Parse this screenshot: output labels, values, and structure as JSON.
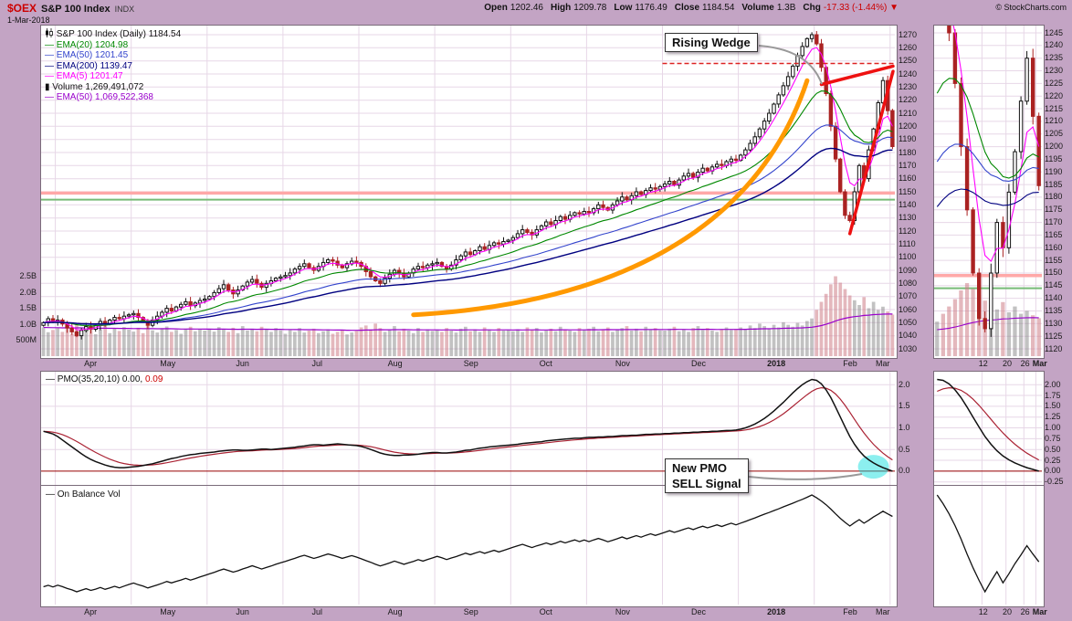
{
  "header": {
    "symbol": "$OEX",
    "name": "S&P 100 Index",
    "exchange": "INDX",
    "date": "1-Mar-2018",
    "watermark": "© StockCharts.com",
    "quote_items": [
      {
        "label": "Open",
        "value": "1202.46"
      },
      {
        "label": "High",
        "value": "1209.78"
      },
      {
        "label": "Low",
        "value": "1176.49"
      },
      {
        "label": "Close",
        "value": "1184.54"
      },
      {
        "label": "Volume",
        "value": "1.3B"
      },
      {
        "label": "Chg",
        "value": "-17.33 (-1.44%)",
        "color": "#cc0000",
        "icon": "▼"
      }
    ]
  },
  "legend": {
    "title": "S&P 100 Index (Daily) 1184.54",
    "items": [
      {
        "glyph": "—",
        "color": "#008800",
        "label": "EMA(20) 1204.98"
      },
      {
        "glyph": "—",
        "color": "#3344cc",
        "label": "EMA(50) 1201.45"
      },
      {
        "glyph": "—",
        "color": "#000080",
        "label": "EMA(200) 1139.47"
      },
      {
        "glyph": "—",
        "color": "#ff00ff",
        "label": "EMA(5) 1201.47"
      },
      {
        "glyph": "▮",
        "color": "#111111",
        "label": "Volume 1,269,491,072"
      },
      {
        "glyph": "—",
        "color": "#9900cc",
        "label": "EMA(50) 1,069,522,368"
      }
    ]
  },
  "pmo": {
    "legend": "PMO(35,20,10) 0.00,",
    "legend_value": "0.09"
  },
  "obv": {
    "legend": "— On Balance Vol"
  },
  "annotations": {
    "rising_wedge": "Rising Wedge",
    "pmo_sell_line1": "New PMO",
    "pmo_sell_line2": "SELL Signal"
  },
  "axes": {
    "volume_ticks": [
      {
        "label": "2.5B",
        "v": 2500
      },
      {
        "label": "2.0B",
        "v": 2000
      },
      {
        "label": "1.5B",
        "v": 1500
      },
      {
        "label": "1.0B",
        "v": 1000
      },
      {
        "label": "500M",
        "v": 500
      }
    ],
    "pmo_ticks": [
      {
        "label": "2.0",
        "v": 2.0
      },
      {
        "label": "1.5",
        "v": 1.5
      },
      {
        "label": "1.0",
        "v": 1.0
      },
      {
        "label": "0.5",
        "v": 0.5
      },
      {
        "label": "0.0",
        "v": 0.0
      }
    ],
    "mini_pmo_ticks": [
      {
        "label": "2.00",
        "v": 2.0
      },
      {
        "label": "1.75",
        "v": 1.75
      },
      {
        "label": "1.50",
        "v": 1.5
      },
      {
        "label": "1.25",
        "v": 1.25
      },
      {
        "label": "1.00",
        "v": 1.0
      },
      {
        "label": "0.75",
        "v": 0.75
      },
      {
        "label": "0.50",
        "v": 0.5
      },
      {
        "label": "0.25",
        "v": 0.25
      },
      {
        "label": "0.00",
        "v": 0.0
      },
      {
        "label": "-0.25",
        "v": -0.25
      }
    ]
  },
  "chart_data": {
    "type": "candlestick",
    "title": "S&P 100 Index (Daily)",
    "x_months": [
      "Apr",
      "May",
      "Jun",
      "Jul",
      "Aug",
      "Sep",
      "Oct",
      "Nov",
      "Dec",
      "2018",
      "Feb",
      "Mar"
    ],
    "month_start_indices": [
      3,
      19,
      35,
      51,
      67,
      83,
      99,
      115,
      131,
      147,
      163,
      179
    ],
    "price_axis": {
      "min": 1030,
      "max": 1270,
      "step": 10
    },
    "mini_axis": {
      "min": 1120,
      "max": 1245,
      "step": 5
    },
    "mini_window_start": 162,
    "mini_gridlines": [
      {
        "i": 170,
        "label": "12"
      },
      {
        "i": 174,
        "label": "20"
      },
      {
        "i": 177,
        "label": "26"
      },
      {
        "i": 179,
        "label": "Mar"
      }
    ],
    "price": {
      "last_close": 1184.54,
      "closes": [
        1050,
        1053,
        1051,
        1052,
        1049,
        1046,
        1043,
        1040,
        1044,
        1047,
        1045,
        1048,
        1051,
        1049,
        1052,
        1054,
        1053,
        1055,
        1056,
        1057,
        1054,
        1051,
        1048,
        1052,
        1055,
        1058,
        1061,
        1059,
        1062,
        1064,
        1066,
        1063,
        1065,
        1067,
        1068,
        1070,
        1073,
        1076,
        1079,
        1075,
        1072,
        1075,
        1078,
        1081,
        1083,
        1080,
        1077,
        1080,
        1082,
        1084,
        1085,
        1086,
        1088,
        1091,
        1093,
        1095,
        1092,
        1090,
        1093,
        1096,
        1098,
        1097,
        1094,
        1092,
        1095,
        1097,
        1096,
        1093,
        1089,
        1085,
        1082,
        1080,
        1084,
        1087,
        1090,
        1088,
        1085,
        1088,
        1091,
        1093,
        1092,
        1094,
        1095,
        1096,
        1093,
        1091,
        1094,
        1098,
        1101,
        1104,
        1102,
        1105,
        1108,
        1106,
        1109,
        1111,
        1110,
        1112,
        1113,
        1115,
        1118,
        1121,
        1119,
        1117,
        1121,
        1124,
        1127,
        1125,
        1128,
        1131,
        1129,
        1132,
        1134,
        1133,
        1135,
        1134,
        1137,
        1140,
        1138,
        1136,
        1140,
        1143,
        1146,
        1144,
        1147,
        1150,
        1148,
        1151,
        1153,
        1152,
        1154,
        1156,
        1158,
        1155,
        1159,
        1162,
        1164,
        1161,
        1165,
        1168,
        1166,
        1169,
        1171,
        1170,
        1173,
        1175,
        1174,
        1178,
        1182,
        1187,
        1192,
        1198,
        1204,
        1210,
        1217,
        1224,
        1231,
        1238,
        1246,
        1254,
        1261,
        1267,
        1270,
        1263,
        1245,
        1225,
        1200,
        1175,
        1150,
        1132,
        1128,
        1150,
        1170,
        1160,
        1182,
        1198,
        1218,
        1235,
        1212,
        1184.54
      ],
      "volumes_millions": [
        900,
        750,
        820,
        880,
        760,
        940,
        700,
        1020,
        850,
        780,
        920,
        690,
        840,
        980,
        720,
        860,
        790,
        910,
        830,
        770,
        890,
        720,
        950,
        810,
        740,
        880,
        930,
        760,
        820,
        700,
        860,
        920,
        780,
        840,
        800,
        850,
        770,
        910,
        830,
        760,
        890,
        720,
        940,
        800,
        860,
        780,
        920,
        840,
        760,
        880,
        810,
        700,
        820,
        760,
        880,
        740,
        800,
        860,
        720,
        780,
        840,
        700,
        760,
        820,
        680,
        740,
        790,
        900,
        960,
        840,
        1020,
        880,
        760,
        820,
        940,
        780,
        860,
        800,
        720,
        880,
        760,
        840,
        790,
        820,
        760,
        880,
        800,
        740,
        860,
        920,
        780,
        840,
        760,
        900,
        820,
        760,
        880,
        800,
        830,
        780,
        840,
        760,
        900,
        820,
        880,
        740,
        800,
        860,
        780,
        920,
        840,
        800,
        760,
        880,
        820,
        860,
        920,
        780,
        840,
        900,
        760,
        820,
        880,
        940,
        800,
        860,
        780,
        920,
        840,
        880,
        810,
        800,
        860,
        920,
        780,
        840,
        760,
        880,
        940,
        820,
        880,
        800,
        760,
        840,
        900,
        820,
        850,
        900,
        840,
        960,
        880,
        1020,
        940,
        860,
        980,
        900,
        1060,
        980,
        920,
        1040,
        960,
        1100,
        1180,
        1450,
        1700,
        1950,
        2250,
        2500,
        2300,
        2100,
        1900,
        1750,
        1600,
        1850,
        1500,
        1700,
        1450,
        1550,
        1400,
        1300
      ]
    },
    "overlays": {
      "emas": [
        {
          "period": 5,
          "display_span": 5,
          "color": "#ff00ff"
        },
        {
          "period": 20,
          "display_span": 20,
          "color": "#008800"
        },
        {
          "period": 50,
          "display_span": 40,
          "color": "#3344cc"
        },
        {
          "period": 200,
          "display_span": 60,
          "color": "#000080"
        }
      ],
      "volume_ema_period": 50,
      "volume_ema_color": "#9900cc",
      "orange_curve": {
        "color": "#ff9900",
        "points": [
          [
            78,
            1056
          ],
          [
            118,
            1064
          ],
          [
            150,
            1115
          ],
          [
            161,
            1235
          ]
        ]
      },
      "wedge_lines": [
        {
          "from_i": 164,
          "from_p": 1232,
          "to_i": 179.8,
          "to_p": 1246
        },
        {
          "from_i": 170,
          "from_p": 1118,
          "to_i": 179.8,
          "to_p": 1242
        }
      ],
      "dashed_resistance": {
        "price": 1248,
        "from_i": 131,
        "color": "#dd2222"
      },
      "hlines": [
        {
          "price": 1149,
          "color": "#ffa8a8",
          "width": 3.5
        },
        {
          "price": 1144,
          "color": "#77bb77",
          "width": 2
        }
      ]
    },
    "pmo": {
      "range": {
        "min": -0.32,
        "max": 2.3
      },
      "signal_span": 8,
      "line_color": "#111111",
      "signal_color": "#aa2233",
      "zero_line_color": "#990000",
      "values": [
        0.92,
        0.89,
        0.86,
        0.8,
        0.72,
        0.64,
        0.56,
        0.48,
        0.4,
        0.33,
        0.27,
        0.22,
        0.18,
        0.14,
        0.11,
        0.09,
        0.08,
        0.08,
        0.09,
        0.1,
        0.11,
        0.13,
        0.15,
        0.17,
        0.2,
        0.23,
        0.26,
        0.29,
        0.31,
        0.34,
        0.36,
        0.38,
        0.39,
        0.41,
        0.42,
        0.43,
        0.44,
        0.46,
        0.47,
        0.48,
        0.49,
        0.49,
        0.48,
        0.48,
        0.49,
        0.5,
        0.51,
        0.51,
        0.5,
        0.51,
        0.52,
        0.53,
        0.54,
        0.55,
        0.57,
        0.58,
        0.6,
        0.61,
        0.61,
        0.6,
        0.61,
        0.62,
        0.63,
        0.62,
        0.61,
        0.6,
        0.59,
        0.57,
        0.54,
        0.5,
        0.46,
        0.42,
        0.39,
        0.37,
        0.36,
        0.36,
        0.37,
        0.37,
        0.38,
        0.39,
        0.41,
        0.42,
        0.43,
        0.43,
        0.42,
        0.42,
        0.43,
        0.44,
        0.46,
        0.48,
        0.49,
        0.51,
        0.53,
        0.54,
        0.56,
        0.57,
        0.58,
        0.59,
        0.6,
        0.61,
        0.62,
        0.64,
        0.65,
        0.66,
        0.67,
        0.68,
        0.7,
        0.71,
        0.72,
        0.73,
        0.74,
        0.75,
        0.76,
        0.76,
        0.77,
        0.78,
        0.78,
        0.79,
        0.79,
        0.8,
        0.8,
        0.81,
        0.82,
        0.82,
        0.83,
        0.83,
        0.84,
        0.85,
        0.85,
        0.86,
        0.86,
        0.87,
        0.87,
        0.88,
        0.88,
        0.89,
        0.89,
        0.9,
        0.9,
        0.91,
        0.91,
        0.92,
        0.92,
        0.93,
        0.94,
        0.94,
        0.95,
        0.97,
        1.0,
        1.04,
        1.09,
        1.15,
        1.22,
        1.3,
        1.39,
        1.49,
        1.59,
        1.7,
        1.81,
        1.91,
        2.0,
        2.07,
        2.12,
        2.1,
        2.02,
        1.88,
        1.7,
        1.48,
        1.25,
        1.02,
        0.8,
        0.62,
        0.47,
        0.35,
        0.26,
        0.19,
        0.13,
        0.08,
        0.04,
        0.0
      ]
    },
    "sell_signal_marker": {
      "i": 175,
      "v": 0.1,
      "color": "rgba(0,220,220,0.45)"
    }
  }
}
